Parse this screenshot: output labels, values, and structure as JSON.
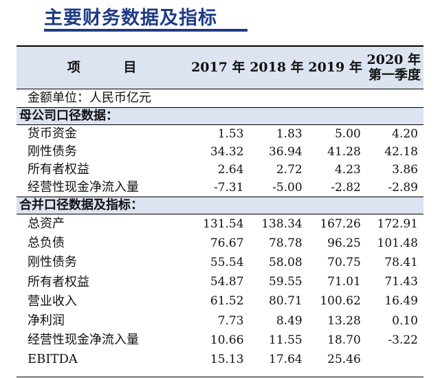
{
  "title": "主要财务数据及指标",
  "table": {
    "header": {
      "item": "项 目",
      "years": [
        "2017 年",
        "2018 年",
        "2019 年"
      ],
      "last_line1": "2020 年",
      "last_line2": "第一季度"
    },
    "unit": "金额单位：人民币亿元",
    "sections": [
      {
        "title": "母公司口径数据：",
        "rows": [
          {
            "label": "货币资金",
            "values": [
              "1.53",
              "1.83",
              "5.00",
              "4.20"
            ]
          },
          {
            "label": "刚性债务",
            "values": [
              "34.32",
              "36.94",
              "41.28",
              "42.18"
            ]
          },
          {
            "label": "所有者权益",
            "values": [
              "2.64",
              "2.72",
              "4.23",
              "3.86"
            ]
          },
          {
            "label": "经营性现金净流入量",
            "values": [
              "-7.31",
              "-5.00",
              "-2.82",
              "-2.89"
            ]
          }
        ]
      },
      {
        "title": "合并口径数据及指标：",
        "rows": [
          {
            "label": "总资产",
            "values": [
              "131.54",
              "138.34",
              "167.26",
              "172.91"
            ]
          },
          {
            "label": "总负债",
            "values": [
              "76.67",
              "78.78",
              "96.25",
              "101.48"
            ]
          },
          {
            "label": "刚性债务",
            "values": [
              "55.54",
              "58.08",
              "70.75",
              "78.41"
            ]
          },
          {
            "label": "所有者权益",
            "values": [
              "54.87",
              "59.55",
              "71.01",
              "71.43"
            ]
          },
          {
            "label": "营业收入",
            "values": [
              "61.52",
              "80.71",
              "100.62",
              "16.49"
            ]
          },
          {
            "label": "净利润",
            "values": [
              "7.73",
              "8.49",
              "13.28",
              "0.10"
            ]
          },
          {
            "label": "经营性现金净流入量",
            "values": [
              "10.66",
              "11.55",
              "18.70",
              "-3.22"
            ]
          },
          {
            "label": "EBITDA",
            "values": [
              "15.13",
              "17.64",
              "25.46",
              ""
            ]
          }
        ]
      }
    ]
  }
}
